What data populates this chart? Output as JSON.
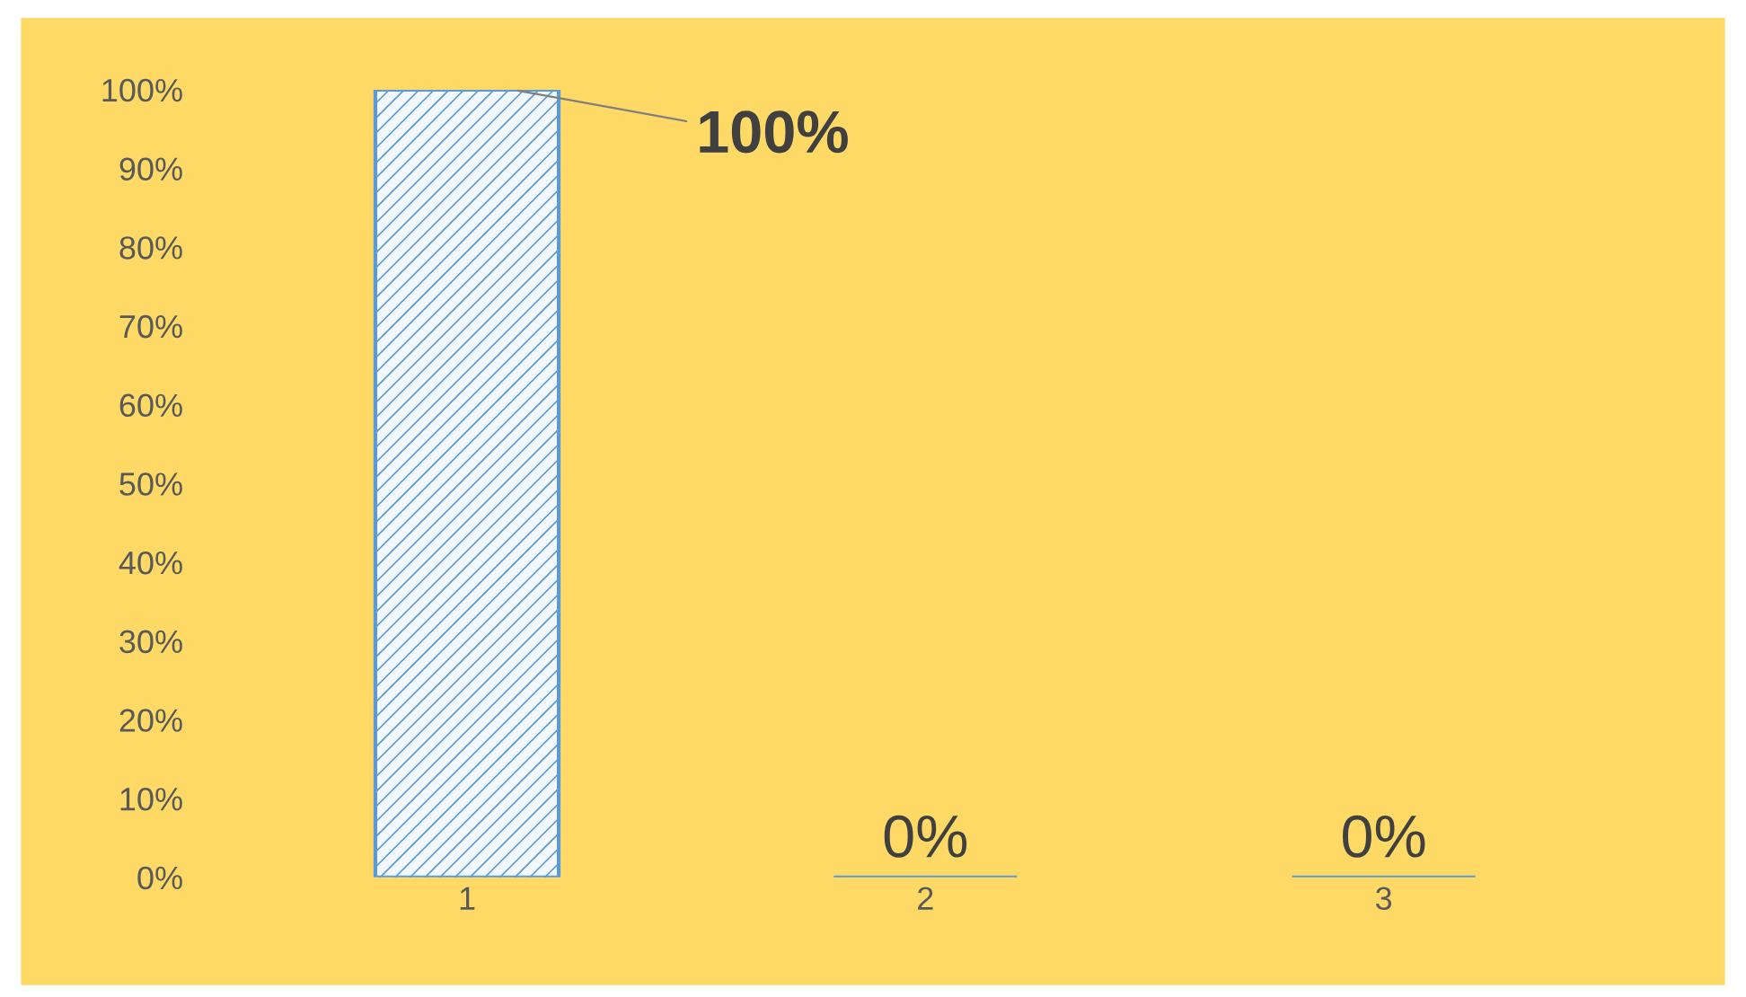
{
  "chart_data": {
    "type": "bar",
    "categories": [
      "1",
      "2",
      "3"
    ],
    "values": [
      100,
      0,
      0
    ],
    "value_labels": [
      "100%",
      "0%",
      "0%"
    ],
    "color": "#5b9bd5",
    "ylim": [
      0,
      100
    ],
    "yticks": [
      {
        "value": 0,
        "label": "0%"
      },
      {
        "value": 10,
        "label": "10%"
      },
      {
        "value": 20,
        "label": "20%"
      },
      {
        "value": 30,
        "label": "30%"
      },
      {
        "value": 40,
        "label": "40%"
      },
      {
        "value": 50,
        "label": "50%"
      },
      {
        "value": 60,
        "label": "60%"
      },
      {
        "value": 70,
        "label": "70%"
      },
      {
        "value": 80,
        "label": "80%"
      },
      {
        "value": 90,
        "label": "90%"
      },
      {
        "value": 100,
        "label": "100%"
      }
    ],
    "grid": false,
    "legend": false
  }
}
